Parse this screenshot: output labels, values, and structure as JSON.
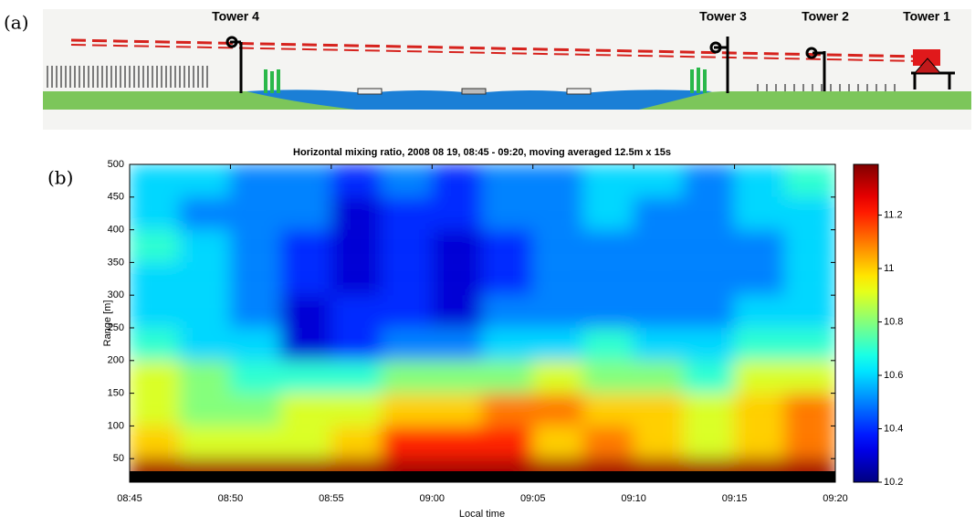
{
  "panel_labels": [
    "(a)",
    "(b)"
  ],
  "diagram": {
    "towers": [
      "Tower 4",
      "Tower 3",
      "Tower 2",
      "Tower 1"
    ]
  },
  "chart_data": {
    "type": "heatmap",
    "title": "Horizontal mixing ratio, 2008 08 19, 08:45 - 09:20, moving averaged 12.5m x 15s",
    "xlabel": "Local time",
    "ylabel": "Range [m]",
    "xticks": [
      "08:45",
      "08:50",
      "08:55",
      "09:00",
      "09:05",
      "09:10",
      "09:15",
      "09:20"
    ],
    "ylim": [
      14,
      500
    ],
    "yticks": [
      50,
      100,
      150,
      200,
      250,
      300,
      350,
      400,
      450,
      500
    ],
    "y": [
      475,
      425,
      375,
      325,
      275,
      225,
      175,
      125,
      75,
      25
    ],
    "z": [
      [
        10.6,
        10.6,
        10.5,
        10.5,
        10.4,
        10.5,
        10.4,
        10.5,
        10.5,
        10.6,
        10.6,
        10.5,
        10.6,
        10.7
      ],
      [
        10.6,
        10.5,
        10.5,
        10.5,
        10.3,
        10.4,
        10.4,
        10.5,
        10.5,
        10.6,
        10.5,
        10.5,
        10.6,
        10.6
      ],
      [
        10.7,
        10.6,
        10.5,
        10.4,
        10.3,
        10.4,
        10.3,
        10.4,
        10.5,
        10.5,
        10.5,
        10.5,
        10.5,
        10.6
      ],
      [
        10.6,
        10.6,
        10.5,
        10.4,
        10.3,
        10.4,
        10.3,
        10.4,
        10.5,
        10.5,
        10.5,
        10.5,
        10.5,
        10.6
      ],
      [
        10.6,
        10.6,
        10.5,
        10.3,
        10.4,
        10.4,
        10.3,
        10.5,
        10.5,
        10.5,
        10.5,
        10.5,
        10.6,
        10.6
      ],
      [
        10.7,
        10.6,
        10.6,
        10.3,
        10.4,
        10.5,
        10.5,
        10.6,
        10.6,
        10.7,
        10.6,
        10.6,
        10.7,
        10.7
      ],
      [
        10.9,
        10.8,
        10.7,
        10.7,
        10.7,
        10.8,
        10.8,
        10.8,
        10.9,
        10.8,
        10.8,
        10.7,
        10.9,
        10.9
      ],
      [
        10.9,
        10.8,
        10.8,
        10.9,
        10.9,
        11.0,
        11.0,
        11.1,
        11.1,
        11.0,
        11.0,
        10.9,
        11.0,
        11.1
      ],
      [
        11.0,
        10.9,
        10.9,
        10.9,
        11.0,
        11.2,
        11.2,
        11.2,
        11.0,
        11.1,
        11.0,
        10.9,
        11.0,
        11.1
      ],
      [
        11.35,
        11.35,
        11.35,
        11.35,
        11.35,
        11.35,
        11.35,
        11.35,
        11.35,
        11.35,
        11.35,
        11.35,
        11.35,
        11.35
      ]
    ],
    "clim": [
      10.2,
      11.39
    ],
    "cticks": [
      10.2,
      10.4,
      10.6,
      10.8,
      11,
      11.2
    ]
  }
}
